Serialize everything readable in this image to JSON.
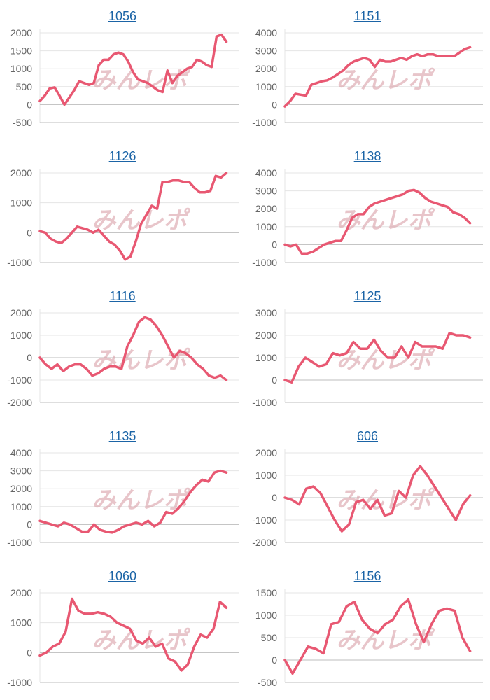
{
  "watermark": "みんレポ",
  "colors": {
    "line": "#e85872",
    "grid": "#e4e4e4",
    "title": "#1b64a6"
  },
  "chart_data": [
    {
      "type": "line",
      "title": "1056",
      "ylim": [
        -500,
        2000
      ],
      "yticks": [
        2000,
        1500,
        1000,
        500,
        0,
        -500
      ],
      "values": [
        100,
        250,
        450,
        480,
        250,
        0,
        200,
        400,
        650,
        600,
        550,
        600,
        1100,
        1250,
        1250,
        1400,
        1450,
        1400,
        1200,
        900,
        700,
        650,
        600,
        500,
        400,
        350,
        950,
        600,
        800,
        900,
        1000,
        1050,
        1250,
        1200,
        1100,
        1050,
        1900,
        1950,
        1750
      ]
    },
    {
      "type": "line",
      "title": "1151",
      "ylim": [
        -1000,
        4000
      ],
      "yticks": [
        4000,
        3000,
        2000,
        1000,
        0,
        -1000
      ],
      "values": [
        -100,
        200,
        600,
        550,
        500,
        1100,
        1200,
        1300,
        1350,
        1500,
        1700,
        1900,
        2200,
        2400,
        2500,
        2600,
        2500,
        2100,
        2500,
        2400,
        2400,
        2500,
        2600,
        2500,
        2700,
        2800,
        2700,
        2800,
        2800,
        2700,
        2700,
        2700,
        2700,
        2900,
        3100,
        3200
      ]
    },
    {
      "type": "line",
      "title": "1126",
      "ylim": [
        -1000,
        2000
      ],
      "yticks": [
        2000,
        1000,
        0,
        -1000
      ],
      "values": [
        50,
        0,
        -200,
        -300,
        -350,
        -200,
        0,
        200,
        150,
        100,
        0,
        100,
        -100,
        -300,
        -400,
        -600,
        -900,
        -800,
        -300,
        300,
        600,
        900,
        800,
        1700,
        1700,
        1750,
        1750,
        1700,
        1700,
        1500,
        1350,
        1350,
        1400,
        1900,
        1850,
        2000
      ]
    },
    {
      "type": "line",
      "title": "1138",
      "ylim": [
        -1000,
        4000
      ],
      "yticks": [
        4000,
        3000,
        2000,
        1000,
        0,
        -1000
      ],
      "values": [
        0,
        -100,
        0,
        -500,
        -500,
        -400,
        -200,
        0,
        100,
        200,
        200,
        800,
        1500,
        1700,
        1700,
        2100,
        2300,
        2400,
        2500,
        2600,
        2700,
        2800,
        3000,
        3050,
        2900,
        2600,
        2400,
        2300,
        2200,
        2100,
        1800,
        1700,
        1500,
        1200
      ]
    },
    {
      "type": "line",
      "title": "1116",
      "ylim": [
        -2000,
        2000
      ],
      "yticks": [
        2000,
        1000,
        0,
        -1000,
        -2000
      ],
      "values": [
        0,
        -300,
        -500,
        -300,
        -600,
        -400,
        -300,
        -300,
        -500,
        -800,
        -700,
        -500,
        -400,
        -400,
        -500,
        500,
        1000,
        1600,
        1800,
        1700,
        1400,
        1000,
        500,
        0,
        300,
        200,
        0,
        -300,
        -500,
        -800,
        -900,
        -800,
        -1000
      ]
    },
    {
      "type": "line",
      "title": "1125",
      "ylim": [
        -1000,
        3000
      ],
      "yticks": [
        3000,
        2000,
        1000,
        0,
        -1000
      ],
      "values": [
        0,
        -100,
        600,
        1000,
        800,
        600,
        700,
        1200,
        1100,
        1200,
        1700,
        1400,
        1400,
        1800,
        1300,
        1000,
        1000,
        1500,
        1000,
        1700,
        1500,
        1500,
        1500,
        1400,
        2100,
        2000,
        2000,
        1900
      ]
    },
    {
      "type": "line",
      "title": "1135",
      "ylim": [
        -1000,
        4000
      ],
      "yticks": [
        4000,
        3000,
        2000,
        1000,
        0,
        -1000
      ],
      "values": [
        200,
        100,
        0,
        -100,
        100,
        0,
        -200,
        -400,
        -400,
        0,
        -300,
        -400,
        -450,
        -300,
        -100,
        0,
        100,
        0,
        200,
        -100,
        100,
        700,
        600,
        900,
        1300,
        1800,
        2200,
        2500,
        2400,
        2900,
        3000,
        2900
      ]
    },
    {
      "type": "line",
      "title": "606",
      "ylim": [
        -2000,
        2000
      ],
      "yticks": [
        2000,
        1000,
        0,
        -1000,
        -2000
      ],
      "values": [
        0,
        -100,
        -300,
        400,
        500,
        200,
        -400,
        -1000,
        -1500,
        -1200,
        -200,
        -100,
        -500,
        -100,
        -800,
        -700,
        300,
        0,
        1000,
        1400,
        1000,
        500,
        0,
        -500,
        -1000,
        -300,
        100
      ]
    },
    {
      "type": "line",
      "title": "1060",
      "ylim": [
        -1000,
        2000
      ],
      "yticks": [
        2000,
        1000,
        0,
        -1000
      ],
      "values": [
        -100,
        0,
        200,
        300,
        700,
        1800,
        1400,
        1300,
        1300,
        1350,
        1300,
        1200,
        1000,
        900,
        800,
        400,
        300,
        500,
        200,
        300,
        -200,
        -300,
        -600,
        -400,
        200,
        600,
        500,
        800,
        1700,
        1500
      ]
    },
    {
      "type": "line",
      "title": "1156",
      "ylim": [
        -500,
        1500
      ],
      "yticks": [
        1500,
        1000,
        500,
        0,
        -500
      ],
      "values": [
        0,
        -300,
        0,
        300,
        250,
        150,
        800,
        850,
        1200,
        1300,
        900,
        700,
        600,
        800,
        900,
        1200,
        1350,
        800,
        400,
        800,
        1100,
        1150,
        1100,
        500,
        200
      ]
    }
  ]
}
